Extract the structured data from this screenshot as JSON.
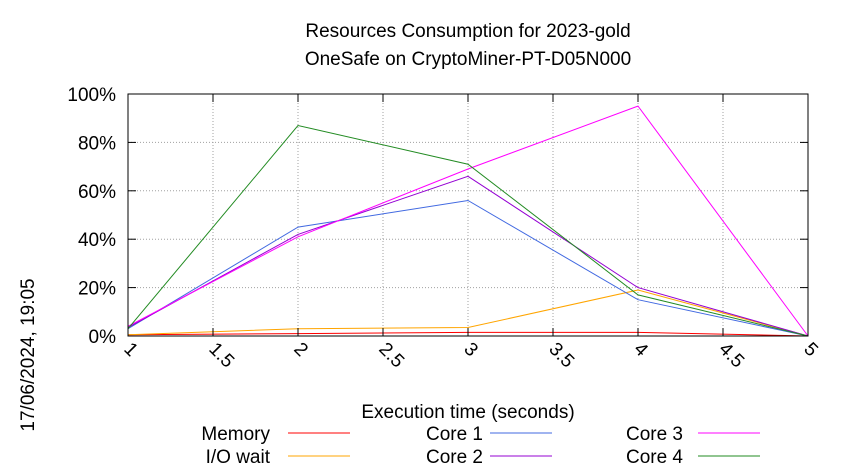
{
  "chart_data": {
    "type": "line",
    "title_line1": "Resources Consumption for 2023-gold",
    "title_line2": "OneSafe on CryptoMiner-PT-D05N000",
    "xlabel": "Execution time (seconds)",
    "side_label": "17/06/2024, 19:05",
    "x_ticks": [
      "1",
      "1.5",
      "2",
      "2.5",
      "3",
      "3.5",
      "4",
      "4.5",
      "5"
    ],
    "y_ticks": [
      "0%",
      "20%",
      "40%",
      "60%",
      "80%",
      "100%"
    ],
    "xlim": [
      1,
      5
    ],
    "ylim": [
      0,
      100
    ],
    "grid": true,
    "legend_position": "bottom",
    "x": [
      1,
      2,
      3,
      4,
      5
    ],
    "series": [
      {
        "name": "Memory",
        "color": "#ff0000",
        "values": [
          0.5,
          1,
          1.5,
          1.5,
          0
        ]
      },
      {
        "name": "I/O wait",
        "color": "#ffa500",
        "values": [
          0.5,
          3,
          3.5,
          19,
          0
        ]
      },
      {
        "name": "Core 1",
        "color": "#4169e1",
        "values": [
          3,
          45,
          56,
          15,
          0
        ]
      },
      {
        "name": "Core 2",
        "color": "#9400d3",
        "values": [
          3.5,
          42,
          66,
          20,
          0
        ]
      },
      {
        "name": "Core 3",
        "color": "#ff00ff",
        "values": [
          4,
          41,
          69,
          95,
          0
        ]
      },
      {
        "name": "Core 4",
        "color": "#228b22",
        "values": [
          3,
          87,
          71,
          17,
          0
        ]
      }
    ]
  }
}
